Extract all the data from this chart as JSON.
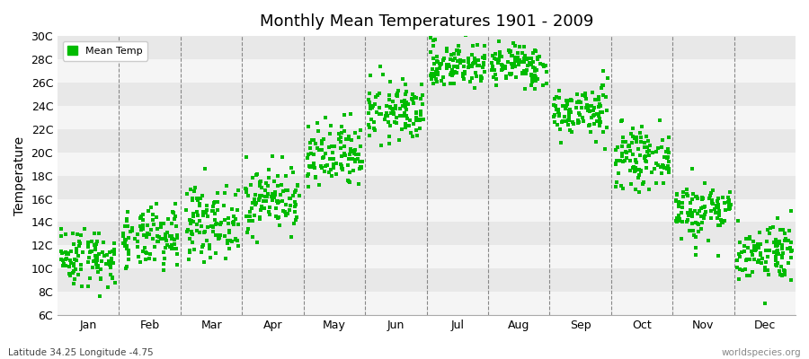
{
  "title": "Monthly Mean Temperatures 1901 - 2009",
  "ylabel": "Temperature",
  "dot_color": "#00bb00",
  "dot_size": 5,
  "bg_stripe_light": "#f5f5f5",
  "bg_stripe_dark": "#e8e8e8",
  "months": [
    "Jan",
    "Feb",
    "Mar",
    "Apr",
    "May",
    "Jun",
    "Jul",
    "Aug",
    "Sep",
    "Oct",
    "Nov",
    "Dec"
  ],
  "monthly_means": [
    11.0,
    12.5,
    14.0,
    16.0,
    19.5,
    23.5,
    27.5,
    27.5,
    23.5,
    19.5,
    15.0,
    11.5
  ],
  "monthly_stds": [
    1.3,
    1.3,
    1.5,
    1.4,
    1.5,
    1.3,
    1.0,
    0.9,
    1.1,
    1.2,
    1.3,
    1.3
  ],
  "years": 109,
  "ylim": [
    6,
    30
  ],
  "ytick_labels": [
    "6C",
    "8C",
    "10C",
    "12C",
    "14C",
    "16C",
    "18C",
    "20C",
    "22C",
    "24C",
    "26C",
    "28C",
    "30C"
  ],
  "ytick_values": [
    6,
    8,
    10,
    12,
    14,
    16,
    18,
    20,
    22,
    24,
    26,
    28,
    30
  ],
  "footer_left": "Latitude 34.25 Longitude -4.75",
  "footer_right": "worldspecies.org",
  "legend_label": "Mean Temp"
}
